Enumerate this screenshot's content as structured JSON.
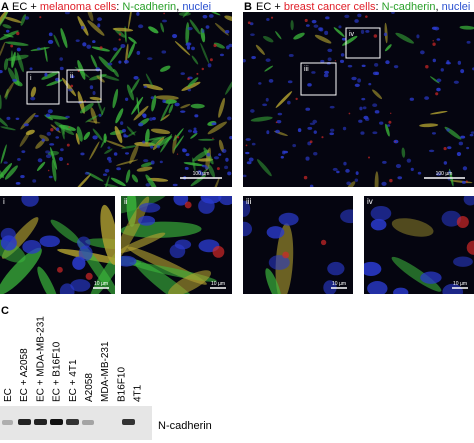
{
  "panel_a": {
    "label": "A",
    "title_parts": [
      "EC + ",
      "melanoma cells",
      ": ",
      "N-cadherin",
      ", ",
      "nuclei"
    ],
    "scale_bar": "100 µm",
    "insets": [
      "i",
      "ii"
    ]
  },
  "panel_b": {
    "label": "B",
    "title_parts": [
      "EC + ",
      "breast cancer cells",
      ": ",
      "N-cadherin",
      ", ",
      "nuclei"
    ],
    "scale_bar": "100 µm",
    "insets": [
      "iii",
      "iv"
    ]
  },
  "zooms": [
    {
      "label": "i",
      "scale_bar": "10 µm"
    },
    {
      "label": "ii",
      "scale_bar": "10 µm"
    },
    {
      "label": "iii",
      "scale_bar": "10 µm"
    },
    {
      "label": "iv",
      "scale_bar": "10 µm"
    }
  ],
  "panel_c": {
    "label": "C",
    "lanes": [
      "EC",
      "EC + A2058",
      "EC + MDA-MB-231",
      "EC + B16F10",
      "EC + 4T1",
      "A2058",
      "MDA-MB-231",
      "B16F10",
      "4T1"
    ],
    "band_label": "N-cadherin"
  }
}
